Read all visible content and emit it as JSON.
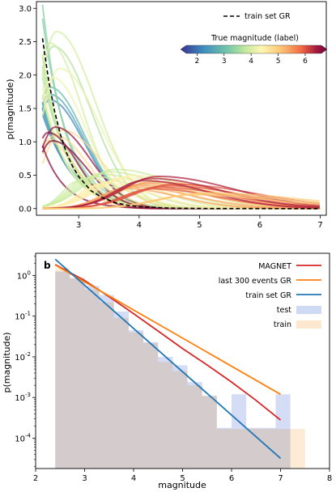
{
  "chart_data": [
    {
      "type": "line",
      "title": "",
      "xlabel": "",
      "ylabel": "p(magnitude)",
      "xlim": [
        2.3,
        7.1
      ],
      "ylim": [
        -0.1,
        3.1
      ],
      "xticks": [
        3,
        4,
        5,
        6,
        7
      ],
      "yticks": [
        0.0,
        0.5,
        1.0,
        1.5,
        2.0,
        2.5,
        3.0
      ],
      "grid": false,
      "legend": {
        "placement": "top-right",
        "entries": [
          "train set GR"
        ]
      },
      "colorbar": {
        "label": "True magnitude (label)",
        "range": [
          1.6,
          6.6
        ],
        "ticks": [
          2,
          3,
          4,
          5,
          6
        ],
        "colormap": "Spectral_r",
        "stops": [
          "#3b2f8f",
          "#3d8bbf",
          "#73c7a8",
          "#c9ea9e",
          "#fdf7b3",
          "#fdc877",
          "#f46d43",
          "#a3173f",
          "#6b0437"
        ]
      },
      "series": [
        {
          "name": "train set GR",
          "style": "dashed",
          "color": "#000000",
          "x": [
            2.4,
            2.5,
            2.6,
            2.7,
            2.8,
            2.9,
            3.0,
            3.2,
            3.4,
            3.6,
            3.8,
            4.0,
            4.5,
            5.0,
            5.5,
            6.0,
            6.5,
            7.0
          ],
          "y": [
            2.55,
            1.93,
            1.46,
            1.1,
            0.83,
            0.63,
            0.48,
            0.27,
            0.16,
            0.09,
            0.05,
            0.03,
            0.007,
            0.002,
            0.0005,
            0.0001,
            0.0,
            0.0
          ]
        }
      ],
      "families": [
        {
          "label_mag": 2.2,
          "peak_x": 2.4,
          "peak_y": 1.52,
          "count": 3
        },
        {
          "label_mag": 2.5,
          "peak_x": 2.4,
          "peak_y": 1.6,
          "count": 3
        },
        {
          "label_mag": 2.7,
          "peak_x": 2.4,
          "peak_y": 1.7,
          "count": 3
        },
        {
          "label_mag": 3.0,
          "peak_x": 2.4,
          "peak_y": 2.95,
          "count": 2
        },
        {
          "label_mag": 3.3,
          "peak_x": 2.4,
          "peak_y": 2.2,
          "count": 4
        },
        {
          "label_mag": 3.6,
          "peak_x": 2.45,
          "peak_y": 2.4,
          "count": 4
        },
        {
          "label_mag": 3.9,
          "peak_x": 2.5,
          "peak_y": 1.9,
          "count": 4
        },
        {
          "label_mag": 4.5,
          "peak_x": 2.6,
          "peak_y": 1.1,
          "count": 3
        },
        {
          "label_mag": 6.1,
          "peak_x": 2.55,
          "peak_y": 1.18,
          "count": 2
        },
        {
          "label_mag": 6.3,
          "peak_x": 2.5,
          "peak_y": 0.98,
          "count": 2
        },
        {
          "label_mag": 3.5,
          "peak_x": 3.3,
          "peak_y": 0.5,
          "count": 6
        },
        {
          "label_mag": 4.2,
          "peak_x": 3.6,
          "peak_y": 0.42,
          "count": 6
        },
        {
          "label_mag": 5.0,
          "peak_x": 4.0,
          "peak_y": 0.35,
          "count": 5
        },
        {
          "label_mag": 5.5,
          "peak_x": 4.4,
          "peak_y": 0.33,
          "count": 4
        },
        {
          "label_mag": 5.9,
          "peak_x": 4.2,
          "peak_y": 0.45,
          "count": 3
        },
        {
          "label_mag": 4.7,
          "peak_x": 5.0,
          "peak_y": 0.22,
          "count": 3
        }
      ]
    },
    {
      "type": "line",
      "panel_label": "b",
      "title": "",
      "xlabel": "magnitude",
      "ylabel": "p(magnitude)",
      "xlim": [
        2,
        8
      ],
      "yscale": "log",
      "ylim": [
        1.8e-05,
        3.5
      ],
      "xticks": [
        2,
        3,
        4,
        5,
        6,
        7,
        8
      ],
      "yticks": [
        "10^0",
        "10^-1",
        "10^-2",
        "10^-3",
        "10^-4"
      ],
      "grid": false,
      "legend": {
        "placement": "top-right",
        "entries": [
          "MAGNET",
          "last 300 events GR",
          "train set GR",
          "test",
          "train"
        ]
      },
      "series": [
        {
          "name": "MAGNET",
          "color": "#d62728",
          "x": [
            2.4,
            3.0,
            3.5,
            4.0,
            4.5,
            5.0,
            5.5,
            6.0,
            6.5,
            7.0
          ],
          "y": [
            1.85,
            0.75,
            0.3,
            0.115,
            0.043,
            0.016,
            0.0063,
            0.0024,
            0.00085,
            0.00028
          ]
        },
        {
          "name": "last 300 events GR",
          "color": "#ff7f0e",
          "x": [
            2.4,
            7.0
          ],
          "y": [
            1.8,
            0.0012
          ]
        },
        {
          "name": "train set GR",
          "color": "#1f77b4",
          "x": [
            2.4,
            7.0
          ],
          "y": [
            2.5,
            3.2e-05
          ]
        }
      ],
      "histograms": [
        {
          "name": "test",
          "color": "#c6d2f2",
          "edges": [
            2.4,
            2.7,
            3.0,
            3.3,
            3.6,
            3.9,
            4.2,
            4.5,
            4.8,
            5.1,
            5.4,
            5.7,
            6.0,
            6.3,
            6.6,
            6.9,
            7.2
          ],
          "values": [
            1.25,
            0.85,
            0.55,
            0.33,
            0.13,
            0.045,
            0.023,
            0.01,
            0.0062,
            0.0024,
            0.0011,
            0.00018,
            0.0012,
            0.00018,
            0.00018,
            0.0012
          ]
        },
        {
          "name": "train",
          "color": "#fde4c7",
          "edges": [
            2.4,
            2.7,
            3.0,
            3.3,
            3.6,
            3.9,
            4.2,
            4.5,
            4.8,
            5.1,
            5.4,
            5.7,
            6.0,
            6.3,
            6.6,
            6.9,
            7.2,
            7.5
          ],
          "values": [
            1.5,
            0.9,
            0.45,
            0.22,
            0.09,
            0.04,
            0.022,
            0.0075,
            0.0045,
            0.002,
            0.0011,
            0.00017,
            0.00017,
            0.00017,
            0.00017,
            0.00017,
            0.00017
          ]
        }
      ]
    }
  ]
}
